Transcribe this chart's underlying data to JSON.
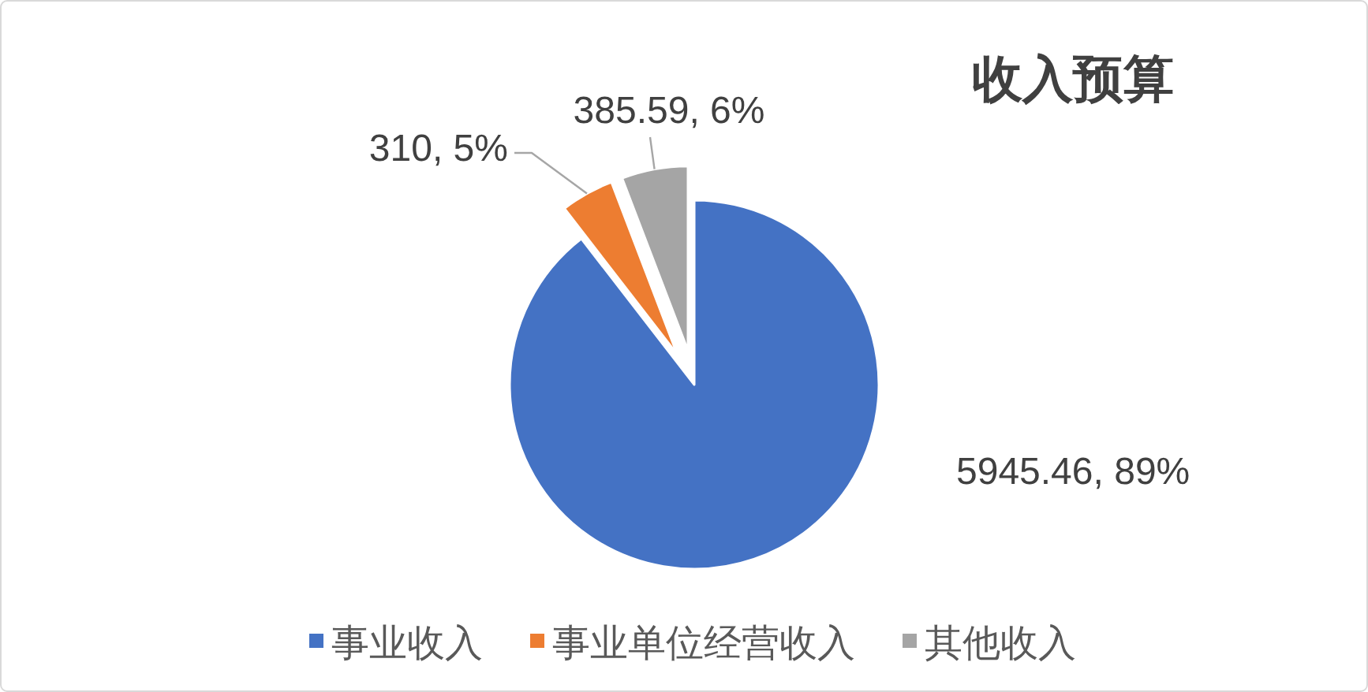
{
  "chart_data": {
    "type": "pie",
    "title": "收入预算",
    "categories": [
      "事业收入",
      "事业单位经营收入",
      "其他收入"
    ],
    "values": [
      5945.46,
      310,
      385.59
    ],
    "colors": [
      "#4472c4",
      "#ed7d31",
      "#a5a5a5"
    ],
    "value_labels": [
      "5945.46, 89%",
      "310, 5%",
      "385.59, 6%"
    ],
    "legend": "bottom"
  }
}
